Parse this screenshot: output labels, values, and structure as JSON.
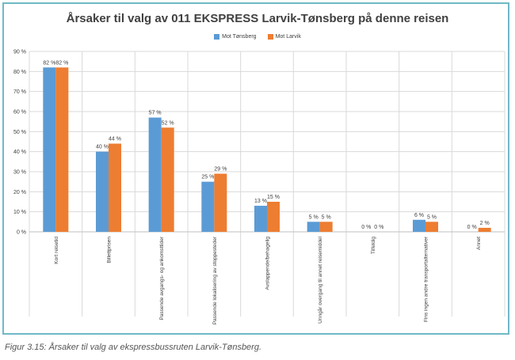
{
  "chart_data": {
    "type": "bar",
    "title": "Årsaker til valg av 011 EKSPRESS Larvik-Tønsberg på denne reisen",
    "categories": [
      "Kort reisetid",
      "Billettprisen",
      "Passende avgangs- og ankomsttider",
      "Passende lokalisering av stoppesteder",
      "Avslappende/behagelig",
      "Unngår overgang til annet reisemiddel",
      "Tilfeldig",
      "Fins ingen andre transportalternativer",
      "Annet"
    ],
    "series": [
      {
        "name": "Mot Tønsberg",
        "color": "#5b9bd5",
        "values": [
          82,
          40,
          57,
          25,
          13,
          5,
          0,
          6,
          0
        ],
        "labels": [
          "82 %",
          "40 %",
          "57 %",
          "25 %",
          "13 %",
          "5 %",
          "0 %",
          "6 %",
          "0 %"
        ]
      },
      {
        "name": "Mot Larvik",
        "color": "#ed7d31",
        "values": [
          82,
          44,
          52,
          29,
          15,
          5,
          0,
          5,
          2
        ],
        "labels": [
          "82 %",
          "44 %",
          "52 %",
          "29 %",
          "15 %",
          "5 %",
          "0 %",
          "5 %",
          "2 %"
        ]
      }
    ],
    "ylim": [
      0,
      90
    ],
    "yticks": [
      0,
      10,
      20,
      30,
      40,
      50,
      60,
      70,
      80,
      90
    ],
    "ytick_labels": [
      "0 %",
      "10 %",
      "20 %",
      "30 %",
      "40 %",
      "50 %",
      "60 %",
      "70 %",
      "80 %",
      "90 %"
    ],
    "grid": true,
    "legend_position": "top-center"
  },
  "caption": "Figur 3.15: Årsaker til valg av ekspressbussruten Larvik-Tønsberg."
}
